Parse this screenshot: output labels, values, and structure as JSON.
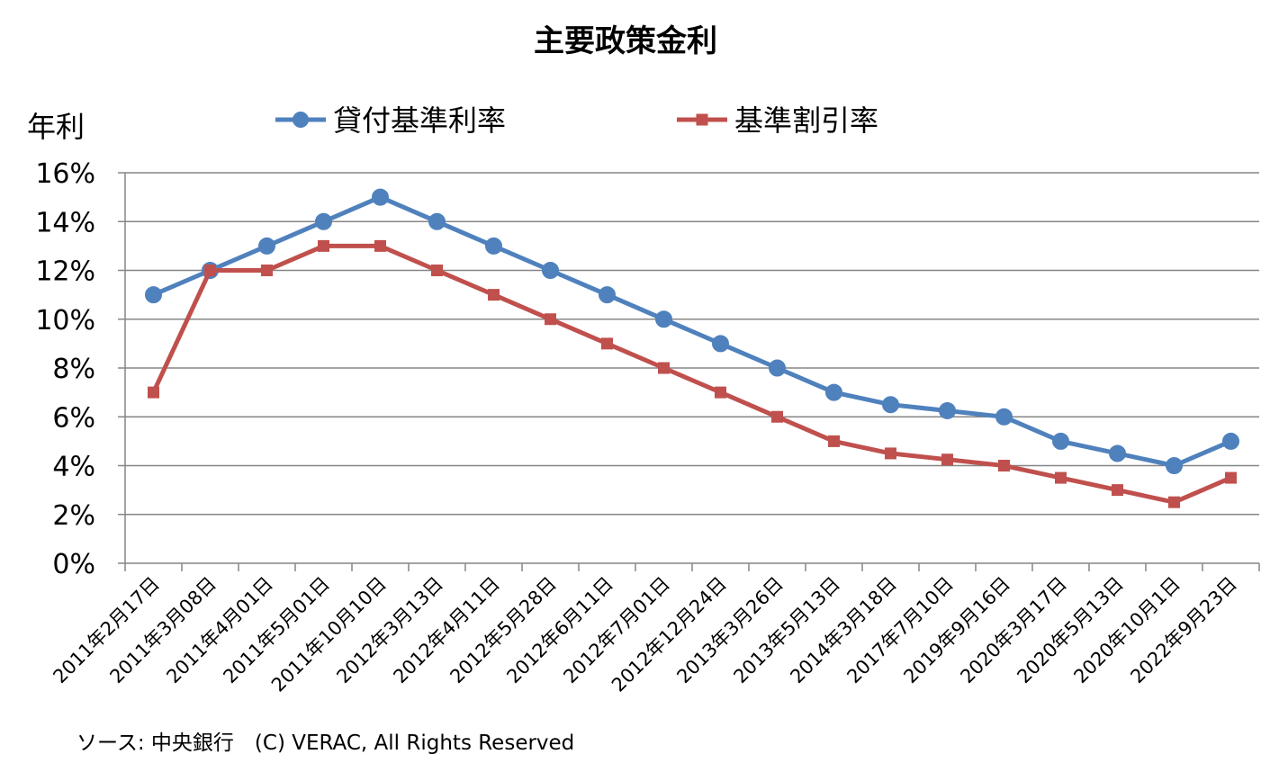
{
  "chart_data": {
    "type": "line",
    "title": "主要政策金利",
    "ylabel": "年利",
    "xlabel": "",
    "ylim": [
      0,
      16
    ],
    "ytick_step": 2,
    "y_unit_suffix": "%",
    "grid": true,
    "legend_position": "top",
    "categories": [
      "2011年2月17日",
      "2011年3月08日",
      "2011年4月01日",
      "2011年5月01日",
      "2011年10月10日",
      "2012年3月13日",
      "2012年4月11日",
      "2012年5月28日",
      "2012年6月11日",
      "2012年7月01日",
      "2012年12月24日",
      "2013年3月26日",
      "2013年5月13日",
      "2014年3月18日",
      "2017年7月10日",
      "2019年9月16日",
      "2020年3月17日",
      "2020年5月13日",
      "2020年10月1日",
      "2022年9月23日"
    ],
    "series": [
      {
        "name": "貸付基準利率",
        "color": "#4F81BD",
        "marker": "circle",
        "values": [
          11,
          12,
          13,
          14,
          15,
          14,
          13,
          12,
          11,
          10,
          9,
          8,
          7,
          6.5,
          6.25,
          6,
          5,
          4.5,
          4,
          5
        ]
      },
      {
        "name": "基準割引率",
        "color": "#C0504D",
        "marker": "square",
        "values": [
          7,
          12,
          12,
          13,
          13,
          12,
          11,
          10,
          9,
          8,
          7,
          6,
          5,
          4.5,
          4.25,
          4,
          3.5,
          3,
          2.5,
          3.5
        ]
      }
    ],
    "source_note": "ソース: 中央銀行　(C) VERAC, All Rights Reserved"
  }
}
